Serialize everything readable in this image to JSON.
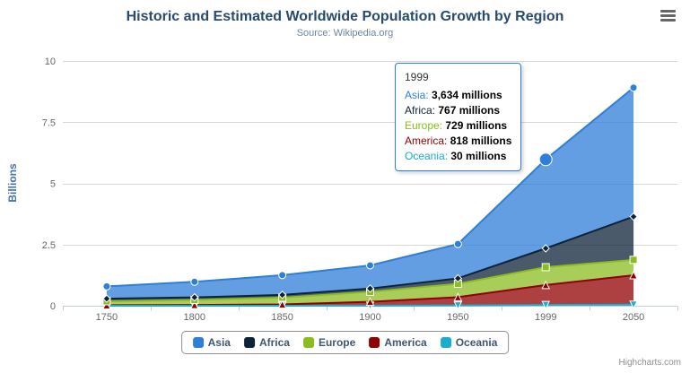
{
  "header": {
    "title": "Historic and Estimated Worldwide Population Growth by Region",
    "subtitle": "Source: Wikipedia.org"
  },
  "y_axis": {
    "title": "Billions",
    "ticks": [
      "0",
      "2.5",
      "5",
      "7.5",
      "10"
    ],
    "tick_values": [
      0,
      2.5,
      5,
      7.5,
      10
    ]
  },
  "x_axis": {
    "categories": [
      "1750",
      "1800",
      "1850",
      "1900",
      "1950",
      "1999",
      "2050"
    ]
  },
  "chart_data": {
    "type": "area",
    "stacking": "normal",
    "title": "Historic and Estimated Worldwide Population Growth by Region",
    "subtitle": "Source: Wikipedia.org",
    "categories": [
      "1750",
      "1800",
      "1850",
      "1900",
      "1950",
      "1999",
      "2050"
    ],
    "unit": "millions",
    "ylabel": "Billions",
    "xlabel": "",
    "ylim": [
      0,
      10
    ],
    "grid": "horizontal",
    "legend_position": "bottom",
    "series": [
      {
        "name": "Asia",
        "color": "#2f7ed8",
        "marker": "circle",
        "values": [
          502,
          635,
          809,
          947,
          1402,
          3634,
          5268
        ]
      },
      {
        "name": "Africa",
        "color": "#0d233a",
        "marker": "diamond",
        "values": [
          106,
          107,
          111,
          133,
          221,
          767,
          1766
        ]
      },
      {
        "name": "Europe",
        "color": "#8bbc21",
        "marker": "square",
        "values": [
          163,
          203,
          276,
          408,
          547,
          729,
          628
        ]
      },
      {
        "name": "America",
        "color": "#910000",
        "marker": "triangle",
        "values": [
          18,
          31,
          54,
          156,
          339,
          818,
          1201
        ]
      },
      {
        "name": "Oceania",
        "color": "#1aadce",
        "marker": "triangle-down",
        "values": [
          2,
          2,
          2,
          6,
          13,
          30,
          46
        ]
      }
    ]
  },
  "tooltip": {
    "header": "1999",
    "hover": {
      "series": "Asia",
      "category": "1999"
    },
    "rows": [
      {
        "name": "Asia",
        "value": "3,634 millions"
      },
      {
        "name": "Africa",
        "value": "767 millions"
      },
      {
        "name": "Europe",
        "value": "729 millions"
      },
      {
        "name": "America",
        "value": "818 millions"
      },
      {
        "name": "Oceania",
        "value": "30 millions"
      }
    ]
  },
  "credits": {
    "label": "Highcharts.com"
  }
}
